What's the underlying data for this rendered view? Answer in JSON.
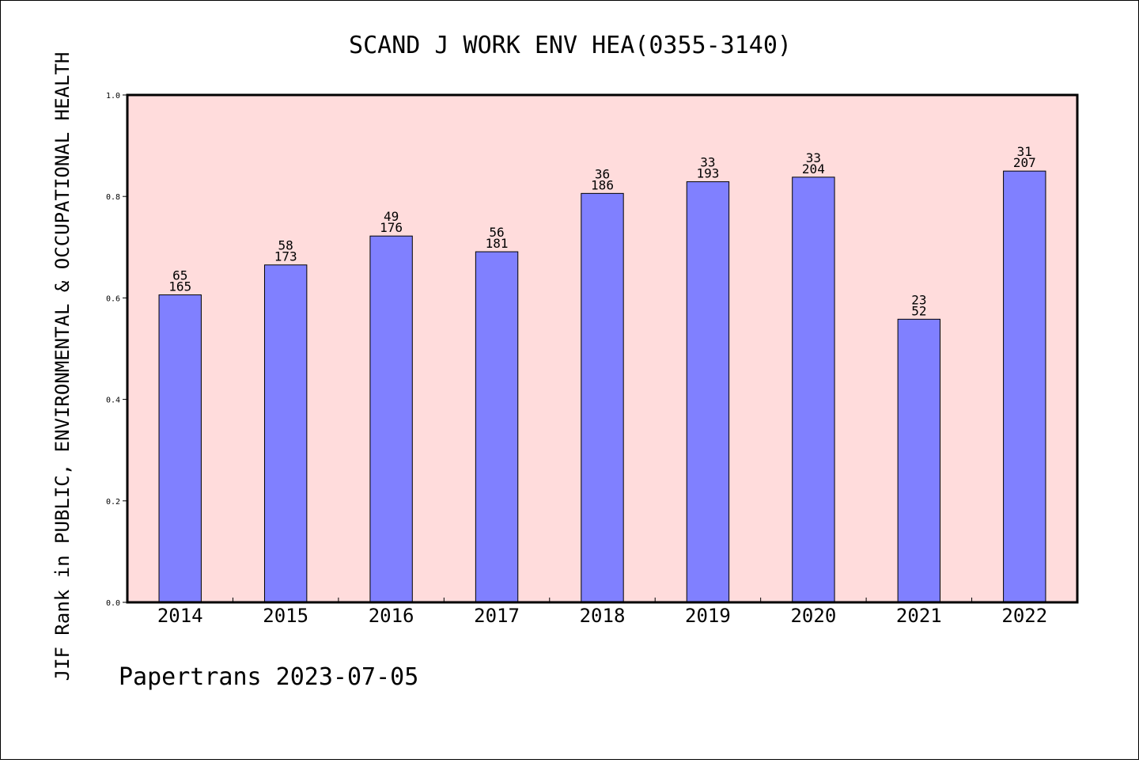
{
  "chart_data": {
    "type": "bar",
    "title": "SCAND J WORK ENV HEA(0355-3140)",
    "xlabel": "",
    "ylabel": "JIF Rank in PUBLIC, ENVIRONMENTAL & OCCUPATIONAL HEALTH",
    "footer": "Papertrans 2023-07-05",
    "categories": [
      "2014",
      "2015",
      "2016",
      "2017",
      "2018",
      "2019",
      "2020",
      "2021",
      "2022"
    ],
    "values": [
      0.606,
      0.665,
      0.722,
      0.691,
      0.806,
      0.829,
      0.838,
      0.558,
      0.85
    ],
    "rank": [
      "65",
      "58",
      "49",
      "56",
      "36",
      "33",
      "33",
      "23",
      "31"
    ],
    "total": [
      "165",
      "173",
      "176",
      "181",
      "186",
      "193",
      "204",
      "52",
      "207"
    ],
    "ylim": [
      0,
      1
    ],
    "yticks": [
      "0.0",
      "0.2",
      "0.4",
      "0.6",
      "0.8",
      "1.0"
    ],
    "grid": false,
    "legend": "none",
    "colors": {
      "plot_background": "#ffdcdc",
      "bar": "#8080ff",
      "border": "#000000"
    }
  }
}
